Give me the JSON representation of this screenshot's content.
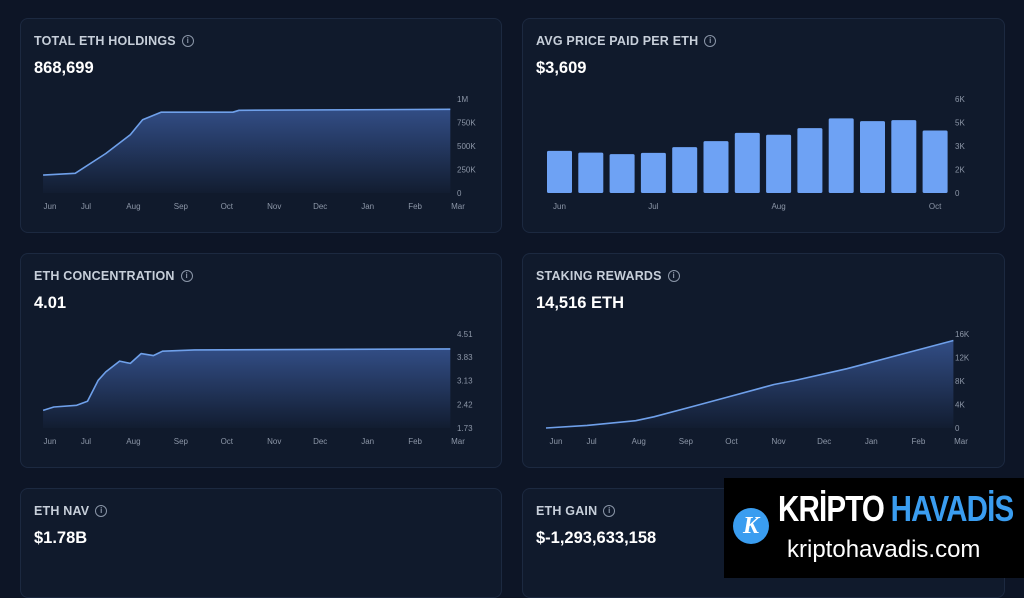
{
  "colors": {
    "line": "#6fa0ea",
    "bar": "#6ea2f4",
    "fill_top": "#34508a",
    "background": "#0d1526",
    "card": "#101a2c"
  },
  "cards": [
    {
      "title": "TOTAL ETH HOLDINGS",
      "value": "868,699",
      "icon": "info-icon"
    },
    {
      "title": "AVG PRICE PAID PER ETH",
      "value": "$3,609",
      "icon": "info-icon"
    },
    {
      "title": "ETH CONCENTRATION",
      "value": "4.01",
      "icon": "info-icon"
    },
    {
      "title": "STAKING REWARDS",
      "value": "14,516 ETH",
      "icon": "info-icon"
    },
    {
      "title": "ETH NAV",
      "value": "$1.78B",
      "icon": "info-icon"
    },
    {
      "title": "ETH GAIN",
      "value": "$-1,293,633,158",
      "icon": "info-icon"
    }
  ],
  "chart_data": [
    {
      "type": "area",
      "ylim": [
        0,
        1000000
      ],
      "yticks": [
        "0",
        "250K",
        "500K",
        "750K",
        "1M"
      ],
      "ytick_values": [
        0,
        250000,
        500000,
        750000,
        1000000
      ],
      "xticks": [
        "Jun",
        "Jul",
        "Aug",
        "Sep",
        "Oct",
        "Nov",
        "Dec",
        "Jan",
        "Feb",
        "Mar"
      ],
      "x": [
        "2025-06-03",
        "2025-06-24",
        "2025-07-14",
        "2025-07-30",
        "2025-08-07",
        "2025-08-19",
        "2025-10-05",
        "2025-10-09",
        "2026-02-24"
      ],
      "y": [
        190000,
        210000,
        420000,
        620000,
        780000,
        860000,
        860000,
        880000,
        890000
      ]
    },
    {
      "type": "bar",
      "ylim": [
        0,
        6000
      ],
      "yticks": [
        "0",
        "2K",
        "3K",
        "5K",
        "6K"
      ],
      "ytick_values": [
        0,
        1500,
        3000,
        4500,
        6000
      ],
      "xticks": [
        {
          "label": "Jun",
          "index": 0
        },
        {
          "label": "Jul",
          "index": 3
        },
        {
          "label": "Aug",
          "index": 7
        },
        {
          "label": "Oct",
          "index": 12
        }
      ],
      "values": [
        2690,
        2580,
        2480,
        2560,
        2930,
        3310,
        3840,
        3720,
        4140,
        4760,
        4590,
        4650,
        3990
      ]
    },
    {
      "type": "area",
      "ylim": [
        1.73,
        4.51
      ],
      "yticks": [
        "1.73",
        "2.42",
        "3.13",
        "3.83",
        "4.51"
      ],
      "ytick_values": [
        1.73,
        2.42,
        3.13,
        3.83,
        4.51
      ],
      "xticks": [
        "Jun",
        "Jul",
        "Aug",
        "Sep",
        "Oct",
        "Nov",
        "Dec",
        "Jan",
        "Feb",
        "Mar"
      ],
      "x": [
        "2025-06-03",
        "2025-06-10",
        "2025-06-25",
        "2025-07-02",
        "2025-07-09",
        "2025-07-14",
        "2025-07-23",
        "2025-07-30",
        "2025-08-06",
        "2025-08-14",
        "2025-08-20",
        "2025-09-10",
        "2026-02-24"
      ],
      "y": [
        2.25,
        2.35,
        2.4,
        2.52,
        3.14,
        3.39,
        3.71,
        3.64,
        3.93,
        3.87,
        4.0,
        4.04,
        4.07
      ]
    },
    {
      "type": "area",
      "ylim": [
        0,
        16000
      ],
      "yticks": [
        "0",
        "4K",
        "8K",
        "12K",
        "16K"
      ],
      "ytick_values": [
        0,
        4000,
        8000,
        12000,
        16000
      ],
      "xticks": [
        "Jun",
        "Jul",
        "Aug",
        "Sep",
        "Oct",
        "Nov",
        "Dec",
        "Jan",
        "Feb",
        "Mar"
      ],
      "x": [
        "2025-06-01",
        "2025-06-28",
        "2025-07-30",
        "2025-08-11",
        "2025-09-07",
        "2025-09-29",
        "2025-10-29",
        "2025-11-12",
        "2025-12-16",
        "2026-01-23",
        "2026-02-24"
      ],
      "y": [
        0,
        450,
        1250,
        1900,
        3760,
        5300,
        7400,
        8100,
        10100,
        12700,
        14900
      ]
    }
  ],
  "watermark": {
    "brand_a": "KRİPTO",
    "brand_b": "HAVADİS",
    "url": "kriptohavadis.com",
    "logo_letter": "K"
  }
}
